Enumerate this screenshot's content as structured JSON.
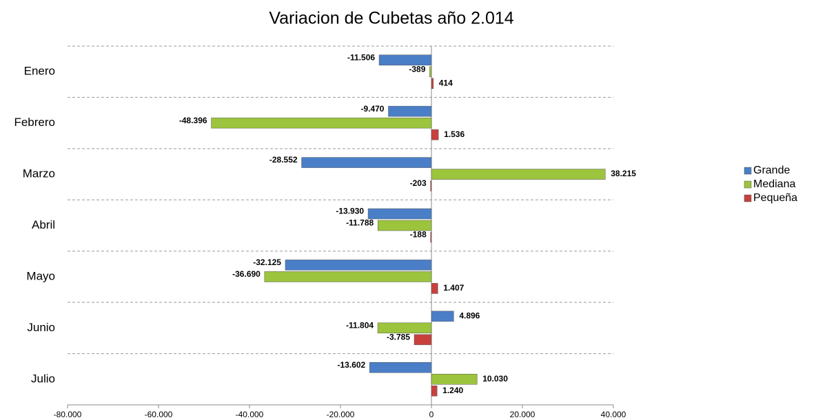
{
  "chart_data": {
    "type": "hbar",
    "title": "Variacion de Cubetas año 2.014",
    "categories": [
      "Enero",
      "Febrero",
      "Marzo",
      "Abril",
      "Mayo",
      "Junio",
      "Julio"
    ],
    "series": [
      {
        "name": "Grande",
        "color": "#4a7fc8",
        "values": [
          -11506,
          -9470,
          -28552,
          -13930,
          -32125,
          4896,
          -13602
        ],
        "value_labels": [
          "-11.506",
          "-9.470",
          "-28.552",
          "-13.930",
          "-32.125",
          "4.896",
          "-13.602"
        ]
      },
      {
        "name": "Mediana",
        "color": "#9cc43c",
        "values": [
          -389,
          -48396,
          38215,
          -11788,
          -36690,
          -11804,
          10030
        ],
        "value_labels": [
          "-389",
          "-48.396",
          "38.215",
          "-11.788",
          "-36.690",
          "-11.804",
          "10.030"
        ]
      },
      {
        "name": "Pequeña",
        "color": "#c8403c",
        "values": [
          414,
          1536,
          -203,
          -188,
          1407,
          -3785,
          1240
        ],
        "value_labels": [
          "414",
          "1.536",
          "-203",
          "-188",
          "1.407",
          "-3.785",
          "1.240"
        ]
      }
    ],
    "xlim": [
      -80000,
      40000
    ],
    "xticks": [
      {
        "value": -80000,
        "label": "-80.000"
      },
      {
        "value": -60000,
        "label": "-60.000"
      },
      {
        "value": -40000,
        "label": "-40.000"
      },
      {
        "value": -20000,
        "label": "-20.000"
      },
      0,
      {
        "value": 20000,
        "label": "20.000"
      },
      {
        "value": 40000,
        "label": "40.000"
      }
    ],
    "legend": "right"
  }
}
